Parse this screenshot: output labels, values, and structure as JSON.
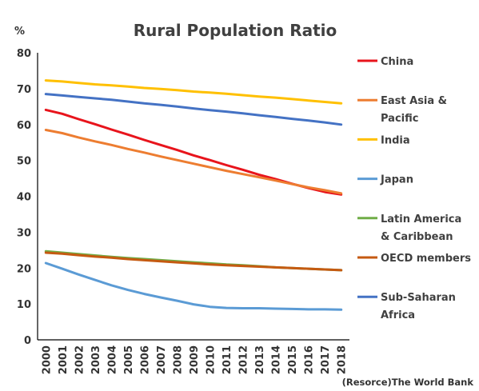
{
  "chart_data": {
    "type": "line",
    "title": "Rural Population Ratio",
    "unit_label": "%",
    "source": "(Resorce)The World Bank",
    "x": [
      "2000",
      "2001",
      "2002",
      "2003",
      "2004",
      "2005",
      "2006",
      "2007",
      "2008",
      "2009",
      "2010",
      "2011",
      "2012",
      "2013",
      "2014",
      "2015",
      "2016",
      "2017",
      "2018"
    ],
    "ylim": [
      0,
      80
    ],
    "yticks": [
      0,
      10,
      20,
      30,
      40,
      50,
      60,
      70,
      80
    ],
    "grid": false,
    "legend_position": "right",
    "series": [
      {
        "name": "China",
        "legend_lines": [
          "China"
        ],
        "color": "#e8141c",
        "values": [
          64.1,
          63.0,
          61.5,
          60.1,
          58.6,
          57.2,
          55.7,
          54.3,
          52.9,
          51.4,
          50.1,
          48.7,
          47.4,
          46.0,
          44.8,
          43.5,
          42.3,
          41.2,
          40.5
        ]
      },
      {
        "name": "East Asia & Pacific",
        "legend_lines": [
          "East Asia &",
          "Pacific"
        ],
        "color": "#ed7d31",
        "values": [
          58.5,
          57.6,
          56.4,
          55.3,
          54.3,
          53.2,
          52.2,
          51.1,
          50.1,
          49.1,
          48.1,
          47.1,
          46.2,
          45.3,
          44.4,
          43.4,
          42.5,
          41.7,
          40.8
        ]
      },
      {
        "name": "India",
        "legend_lines": [
          "India"
        ],
        "color": "#ffc000",
        "values": [
          72.3,
          72.0,
          71.6,
          71.2,
          70.9,
          70.6,
          70.2,
          69.9,
          69.6,
          69.2,
          68.9,
          68.6,
          68.2,
          67.8,
          67.5,
          67.1,
          66.7,
          66.3,
          65.9
        ]
      },
      {
        "name": "Japan",
        "legend_lines": [
          "Japan"
        ],
        "color": "#5b9bd5",
        "values": [
          21.4,
          19.8,
          18.2,
          16.7,
          15.2,
          13.9,
          12.8,
          11.8,
          10.9,
          9.9,
          9.2,
          8.9,
          8.8,
          8.8,
          8.7,
          8.6,
          8.5,
          8.5,
          8.4
        ]
      },
      {
        "name": "Latin America & Caribbean",
        "legend_lines": [
          "Latin America",
          "& Caribbean"
        ],
        "color": "#70ad47",
        "values": [
          24.7,
          24.3,
          23.9,
          23.5,
          23.1,
          22.8,
          22.5,
          22.2,
          21.9,
          21.6,
          21.3,
          21.0,
          20.8,
          20.5,
          20.2,
          20.0,
          19.8,
          19.6,
          19.4
        ]
      },
      {
        "name": "OECD members",
        "legend_lines": [
          "OECD members"
        ],
        "color": "#c55a11",
        "values": [
          24.3,
          24.0,
          23.6,
          23.2,
          22.9,
          22.5,
          22.2,
          21.9,
          21.6,
          21.3,
          21.0,
          20.8,
          20.6,
          20.4,
          20.2,
          20.0,
          19.8,
          19.6,
          19.4
        ]
      },
      {
        "name": "Sub-Saharan Africa",
        "legend_lines": [
          "Sub-Saharan",
          "Africa"
        ],
        "color": "#4472c4",
        "values": [
          68.5,
          68.1,
          67.7,
          67.3,
          66.9,
          66.4,
          65.9,
          65.5,
          65.0,
          64.5,
          64.0,
          63.6,
          63.1,
          62.6,
          62.1,
          61.6,
          61.1,
          60.6,
          60.0
        ]
      }
    ]
  }
}
